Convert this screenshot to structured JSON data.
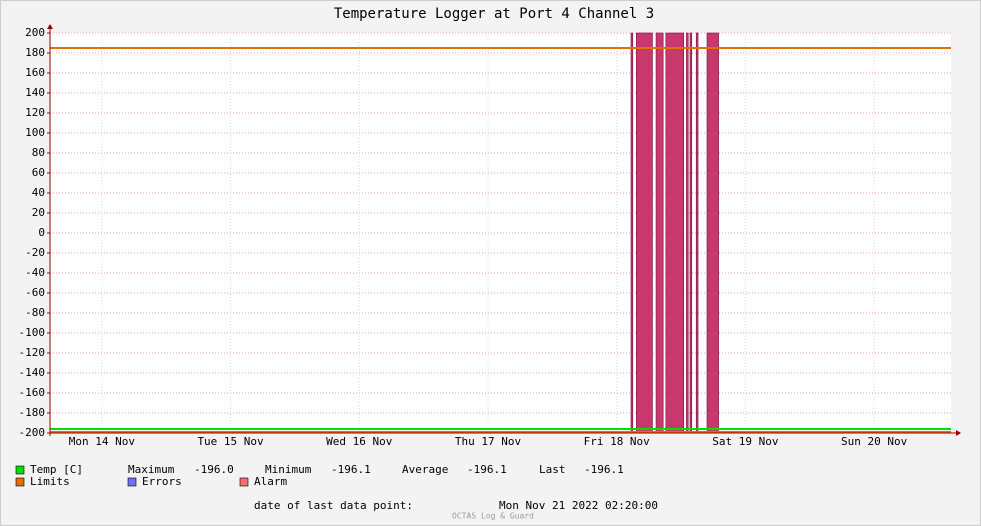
{
  "chart_data": {
    "type": "line",
    "title": "Temperature Logger at Port 4 Channel 3",
    "xlim": [
      "2022-11-14T02:20:00",
      "2022-11-21T02:20:00"
    ],
    "xticks": [
      {
        "value": "2022-11-14T12:00:00",
        "label": "Mon 14 Nov"
      },
      {
        "value": "2022-11-15T12:00:00",
        "label": "Tue 15 Nov"
      },
      {
        "value": "2022-11-16T12:00:00",
        "label": "Wed 16 Nov"
      },
      {
        "value": "2022-11-17T12:00:00",
        "label": "Thu 17 Nov"
      },
      {
        "value": "2022-11-18T12:00:00",
        "label": "Fri 18 Nov"
      },
      {
        "value": "2022-11-19T12:00:00",
        "label": "Sat 19 Nov"
      },
      {
        "value": "2022-11-20T12:00:00",
        "label": "Sun 20 Nov"
      }
    ],
    "ylim": [
      -200,
      200
    ],
    "yticks": [
      -200,
      -180,
      -160,
      -140,
      -120,
      -100,
      -80,
      -60,
      -40,
      -20,
      0,
      20,
      40,
      60,
      80,
      100,
      120,
      140,
      160,
      180,
      200
    ],
    "grid": true,
    "series": [
      {
        "name": "Temp [C]",
        "color": "#00e000",
        "x": [
          "2022-11-14T02:20:00",
          "2022-11-21T02:20:00"
        ],
        "values": [
          -196,
          -196
        ],
        "stats": [
          {
            "name": "Maximum",
            "value": "-196.0"
          },
          {
            "name": "Minimum",
            "value": "-196.1"
          },
          {
            "name": "Average",
            "value": "-196.1"
          },
          {
            "name": "Last",
            "value": "-196.1"
          }
        ]
      },
      {
        "name": "Limits",
        "color": "#e07000",
        "values": [
          185,
          -199
        ]
      },
      {
        "name": "Errors",
        "color": "#7070f0"
      },
      {
        "name": "Alarm",
        "color": "#f07070",
        "band_color": "#c8386e",
        "periods": [
          [
            "2022-11-18T14:40:00",
            "2022-11-18T15:00:00"
          ],
          [
            "2022-11-18T15:40:00",
            "2022-11-18T18:40:00"
          ],
          [
            "2022-11-18T19:20:00",
            "2022-11-18T20:40:00"
          ],
          [
            "2022-11-18T21:10:00",
            "2022-11-19T00:30:00"
          ],
          [
            "2022-11-19T01:00:00",
            "2022-11-19T01:20:00"
          ],
          [
            "2022-11-19T01:40:00",
            "2022-11-19T02:00:00"
          ],
          [
            "2022-11-19T02:50:00",
            "2022-11-19T03:10:00"
          ],
          [
            "2022-11-19T04:50:00",
            "2022-11-19T07:00:00"
          ]
        ]
      }
    ],
    "footer_label": "date of last data point:",
    "footer_value": "Mon Nov 21 2022 02:20:00",
    "watermark": "OCTAS Log & Guard"
  }
}
